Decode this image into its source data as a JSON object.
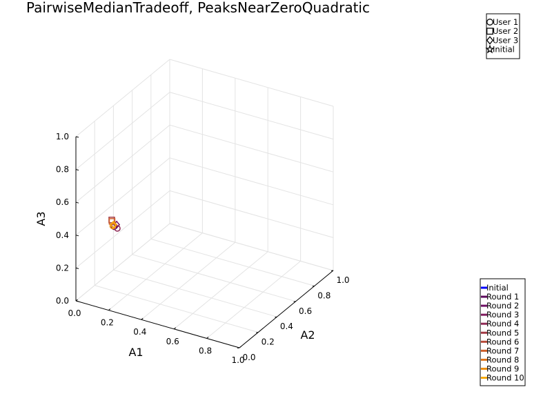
{
  "chart_data": {
    "type": "scatter",
    "title": "PairwiseMedianTradeoff, PeaksNearZeroQuadratic",
    "axes": {
      "x": {
        "label": "A1",
        "range": [
          0,
          1
        ],
        "ticks": [
          "0.0",
          "0.2",
          "0.4",
          "0.6",
          "0.8",
          "1.0"
        ]
      },
      "y": {
        "label": "A2",
        "range": [
          0,
          1
        ],
        "ticks": [
          "0.0",
          "0.2",
          "0.4",
          "0.6",
          "0.8",
          "1.0"
        ]
      },
      "z": {
        "label": "A3",
        "range": [
          0,
          1
        ],
        "ticks": [
          "0.0",
          "0.2",
          "0.4",
          "0.6",
          "0.8",
          "1.0"
        ]
      }
    },
    "grid": true,
    "marker_legend": {
      "placement": "top-right",
      "entries": [
        {
          "label": "User 1",
          "marker": "circle"
        },
        {
          "label": "User 2",
          "marker": "square"
        },
        {
          "label": "User 3",
          "marker": "diamond"
        },
        {
          "label": "Initial",
          "marker": "star"
        }
      ]
    },
    "round_legend": {
      "placement": "bottom-right",
      "entries": [
        {
          "label": "Initial",
          "color": "#0000ff"
        },
        {
          "label": "Round 1",
          "color": "#5c0a5c"
        },
        {
          "label": "Round 2",
          "color": "#6e0f64"
        },
        {
          "label": "Round 3",
          "color": "#7f1a5e"
        },
        {
          "label": "Round 4",
          "color": "#8f2a55"
        },
        {
          "label": "Round 5",
          "color": "#a33a45"
        },
        {
          "label": "Round 6",
          "color": "#b84a38"
        },
        {
          "label": "Round 7",
          "color": "#cf5e28"
        },
        {
          "label": "Round 8",
          "color": "#e07318"
        },
        {
          "label": "Round 9",
          "color": "#ee8e0e"
        },
        {
          "label": "Round 10",
          "color": "#f7ab10"
        }
      ]
    },
    "points": [
      {
        "user": "User 2",
        "round": "Round 5",
        "x": 0.07,
        "y": 0.26,
        "z": 0.39
      },
      {
        "user": "User 1",
        "round": "Round 1",
        "x": 0.09,
        "y": 0.25,
        "z": 0.36
      },
      {
        "user": "User 3",
        "round": "Round 2",
        "x": 0.1,
        "y": 0.26,
        "z": 0.37
      },
      {
        "user": "User 1",
        "round": "Round 4",
        "x": 0.11,
        "y": 0.25,
        "z": 0.355
      },
      {
        "user": "User 2",
        "round": "Round 7",
        "x": 0.075,
        "y": 0.255,
        "z": 0.385
      },
      {
        "user": "User 3",
        "round": "Round 8",
        "x": 0.09,
        "y": 0.25,
        "z": 0.37
      },
      {
        "user": "User 1",
        "round": "Round 9",
        "x": 0.085,
        "y": 0.245,
        "z": 0.365
      },
      {
        "user": "User 3",
        "round": "Round 10",
        "x": 0.085,
        "y": 0.25,
        "z": 0.37
      }
    ]
  }
}
